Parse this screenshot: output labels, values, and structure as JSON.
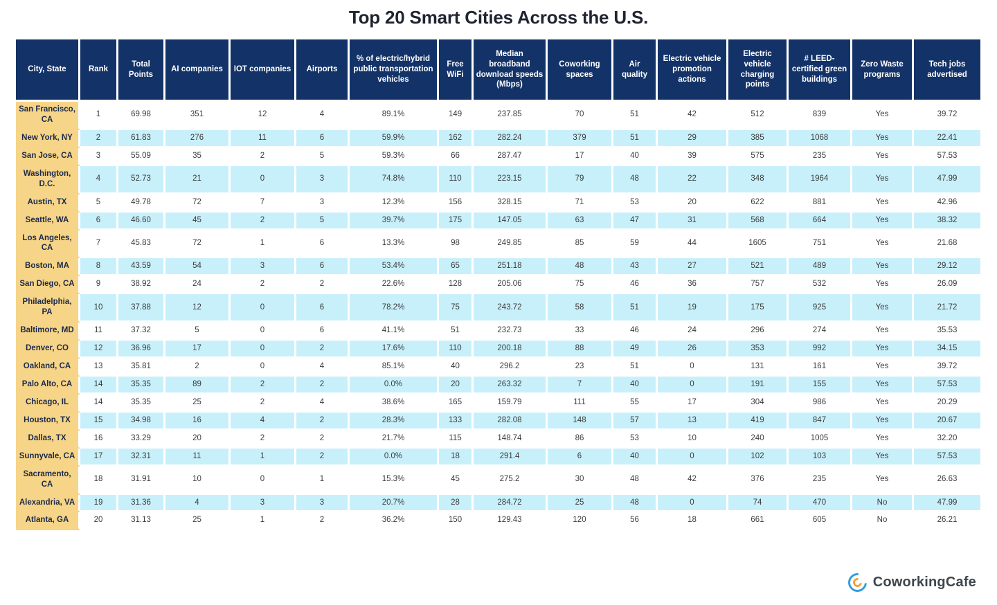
{
  "title": "Top 20 Smart Cities Across the U.S.",
  "logo": {
    "text": "CoworkingCafe",
    "icon": "c-ring-icon"
  },
  "colors": {
    "header_bg": "#133368",
    "city_bg": "#F6D488",
    "stripe_bg": "#C8F0FB",
    "row_bg": "#FFFFFF",
    "logo_blue": "#2F9FE0",
    "logo_orange": "#F4A43B"
  },
  "chart_data": {
    "type": "table",
    "title": "Top 20 Smart Cities Across the U.S.",
    "columns": [
      "City, State",
      "Rank",
      "Total Points",
      "AI companies",
      "IOT companies",
      "Airports",
      "% of electric/hybrid public transportation vehicles",
      "Free WiFi",
      "Median broadband download speeds (Mbps)",
      "Coworking spaces",
      "Air quality",
      "Electric vehicle promotion actions",
      "Electric vehicle charging points",
      "# LEED-certified green buildings",
      "Zero Waste programs",
      "Tech jobs advertised"
    ],
    "rows": [
      [
        "San Francisco, CA",
        "1",
        "69.98",
        "351",
        "12",
        "4",
        "89.1%",
        "149",
        "237.85",
        "70",
        "51",
        "42",
        "512",
        "839",
        "Yes",
        "39.72"
      ],
      [
        "New York, NY",
        "2",
        "61.83",
        "276",
        "11",
        "6",
        "59.9%",
        "162",
        "282.24",
        "379",
        "51",
        "29",
        "385",
        "1068",
        "Yes",
        "22.41"
      ],
      [
        "San Jose, CA",
        "3",
        "55.09",
        "35",
        "2",
        "5",
        "59.3%",
        "66",
        "287.47",
        "17",
        "40",
        "39",
        "575",
        "235",
        "Yes",
        "57.53"
      ],
      [
        "Washington, D.C.",
        "4",
        "52.73",
        "21",
        "0",
        "3",
        "74.8%",
        "110",
        "223.15",
        "79",
        "48",
        "22",
        "348",
        "1964",
        "Yes",
        "47.99"
      ],
      [
        "Austin, TX",
        "5",
        "49.78",
        "72",
        "7",
        "3",
        "12.3%",
        "156",
        "328.15",
        "71",
        "53",
        "20",
        "622",
        "881",
        "Yes",
        "42.96"
      ],
      [
        "Seattle, WA",
        "6",
        "46.60",
        "45",
        "2",
        "5",
        "39.7%",
        "175",
        "147.05",
        "63",
        "47",
        "31",
        "568",
        "664",
        "Yes",
        "38.32"
      ],
      [
        "Los Angeles, CA",
        "7",
        "45.83",
        "72",
        "1",
        "6",
        "13.3%",
        "98",
        "249.85",
        "85",
        "59",
        "44",
        "1605",
        "751",
        "Yes",
        "21.68"
      ],
      [
        "Boston, MA",
        "8",
        "43.59",
        "54",
        "3",
        "6",
        "53.4%",
        "65",
        "251.18",
        "48",
        "43",
        "27",
        "521",
        "489",
        "Yes",
        "29.12"
      ],
      [
        "San Diego, CA",
        "9",
        "38.92",
        "24",
        "2",
        "2",
        "22.6%",
        "128",
        "205.06",
        "75",
        "46",
        "36",
        "757",
        "532",
        "Yes",
        "26.09"
      ],
      [
        "Philadelphia, PA",
        "10",
        "37.88",
        "12",
        "0",
        "6",
        "78.2%",
        "75",
        "243.72",
        "58",
        "51",
        "19",
        "175",
        "925",
        "Yes",
        "21.72"
      ],
      [
        "Baltimore, MD",
        "11",
        "37.32",
        "5",
        "0",
        "6",
        "41.1%",
        "51",
        "232.73",
        "33",
        "46",
        "24",
        "296",
        "274",
        "Yes",
        "35.53"
      ],
      [
        "Denver, CO",
        "12",
        "36.96",
        "17",
        "0",
        "2",
        "17.6%",
        "110",
        "200.18",
        "88",
        "49",
        "26",
        "353",
        "992",
        "Yes",
        "34.15"
      ],
      [
        "Oakland, CA",
        "13",
        "35.81",
        "2",
        "0",
        "4",
        "85.1%",
        "40",
        "296.2",
        "23",
        "51",
        "0",
        "131",
        "161",
        "Yes",
        "39.72"
      ],
      [
        "Palo Alto, CA",
        "14",
        "35.35",
        "89",
        "2",
        "2",
        "0.0%",
        "20",
        "263.32",
        "7",
        "40",
        "0",
        "191",
        "155",
        "Yes",
        "57.53"
      ],
      [
        "Chicago, IL",
        "14",
        "35.35",
        "25",
        "2",
        "4",
        "38.6%",
        "165",
        "159.79",
        "111",
        "55",
        "17",
        "304",
        "986",
        "Yes",
        "20.29"
      ],
      [
        "Houston, TX",
        "15",
        "34.98",
        "16",
        "4",
        "2",
        "28.3%",
        "133",
        "282.08",
        "148",
        "57",
        "13",
        "419",
        "847",
        "Yes",
        "20.67"
      ],
      [
        "Dallas, TX",
        "16",
        "33.29",
        "20",
        "2",
        "2",
        "21.7%",
        "115",
        "148.74",
        "86",
        "53",
        "10",
        "240",
        "1005",
        "Yes",
        "32.20"
      ],
      [
        "Sunnyvale, CA",
        "17",
        "32.31",
        "11",
        "1",
        "2",
        "0.0%",
        "18",
        "291.4",
        "6",
        "40",
        "0",
        "102",
        "103",
        "Yes",
        "57.53"
      ],
      [
        "Sacramento, CA",
        "18",
        "31.91",
        "10",
        "0",
        "1",
        "15.3%",
        "45",
        "275.2",
        "30",
        "48",
        "42",
        "376",
        "235",
        "Yes",
        "26.63"
      ],
      [
        "Alexandria, VA",
        "19",
        "31.36",
        "4",
        "3",
        "3",
        "20.7%",
        "28",
        "284.72",
        "25",
        "48",
        "0",
        "74",
        "470",
        "No",
        "47.99"
      ],
      [
        "Atlanta, GA",
        "20",
        "31.13",
        "25",
        "1",
        "2",
        "36.2%",
        "150",
        "129.43",
        "120",
        "56",
        "18",
        "661",
        "605",
        "No",
        "26.21"
      ]
    ],
    "layout": {
      "zebra_stripes": true,
      "first_column_highlighted": true,
      "legend": "none"
    }
  }
}
